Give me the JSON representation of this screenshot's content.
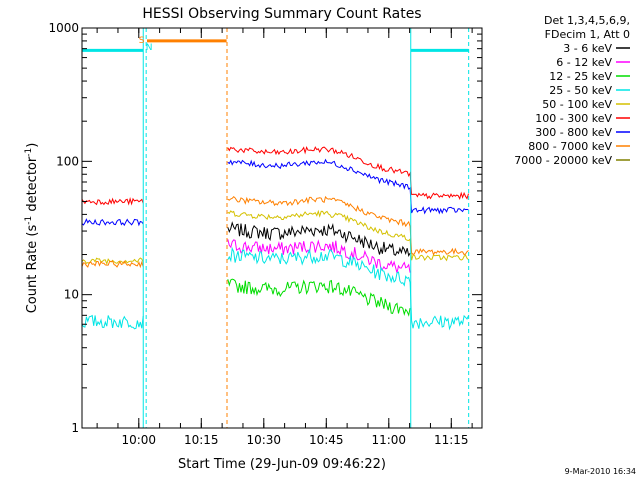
{
  "chart_data": {
    "type": "line",
    "title": "HESSI Observing Summary Count Rates",
    "xlabel": "Start Time (29-Jun-09 09:46:22)",
    "ylabel_main": "Count Rate (s",
    "ylabel_sup1": "-1",
    "ylabel_mid": " detector",
    "ylabel_sup2": "-1",
    "ylabel_end": ")",
    "y_scale": "log",
    "ylim": [
      1,
      1000
    ],
    "xlim_minutes": [
      0,
      96
    ],
    "y_ticks": [
      {
        "value": 1,
        "label": "1"
      },
      {
        "value": 10,
        "label": "10"
      },
      {
        "value": 100,
        "label": "100"
      },
      {
        "value": 1000,
        "label": "1000"
      }
    ],
    "x_ticks": [
      {
        "minute": 13.63,
        "label": "10:00"
      },
      {
        "minute": 28.63,
        "label": "10:15"
      },
      {
        "minute": 43.63,
        "label": "10:30"
      },
      {
        "minute": 58.63,
        "label": "10:45"
      },
      {
        "minute": 73.63,
        "label": "11:00"
      },
      {
        "minute": 88.63,
        "label": "11:15"
      }
    ],
    "legend_title_1": "Det 1,3,4,5,6,9,",
    "legend_title_2": "FDecim 1, Att 0",
    "series": [
      {
        "name": "3 - 6 keV",
        "color": "#000000",
        "level_a": 0,
        "level_b": 25,
        "level_c": 0
      },
      {
        "name": "6 - 12 keV",
        "color": "#ff00ff",
        "level_a": 0,
        "level_b": 19,
        "level_c": 0
      },
      {
        "name": "12 - 25 keV",
        "color": "#00dd00",
        "level_a": 0,
        "level_b": 9.5,
        "level_c": 0
      },
      {
        "name": "25 - 50 keV",
        "color": "#00e5e5",
        "level_a": 6.3,
        "level_b": 16,
        "level_c": 6.3
      },
      {
        "name": "50 - 100 keV",
        "color": "#d4c000",
        "level_a": 18,
        "level_b": 33,
        "level_c": 19
      },
      {
        "name": "100 - 300 keV",
        "color": "#ff0000",
        "level_a": 50,
        "level_b": 100,
        "level_c": 55
      },
      {
        "name": "300 - 800 keV",
        "color": "#0000ff",
        "level_a": 35,
        "level_b": 80,
        "level_c": 43
      },
      {
        "name": "800 - 7000 keV",
        "color": "#ff8000",
        "level_a": 17,
        "level_b": 42,
        "level_c": 21
      },
      {
        "name": "7000 - 20000 keV",
        "color": "#808000",
        "level_a": 0,
        "level_b": 0,
        "level_c": 0
      }
    ],
    "annotations": [
      {
        "label": "S",
        "minute": 14.3,
        "color": "#ff8000"
      },
      {
        "label": "N",
        "minute": 16.1,
        "color": "#00e5e5"
      }
    ],
    "saa_level": 800,
    "night_level": 680,
    "timestamp": "9-Mar-2010 16:34"
  }
}
